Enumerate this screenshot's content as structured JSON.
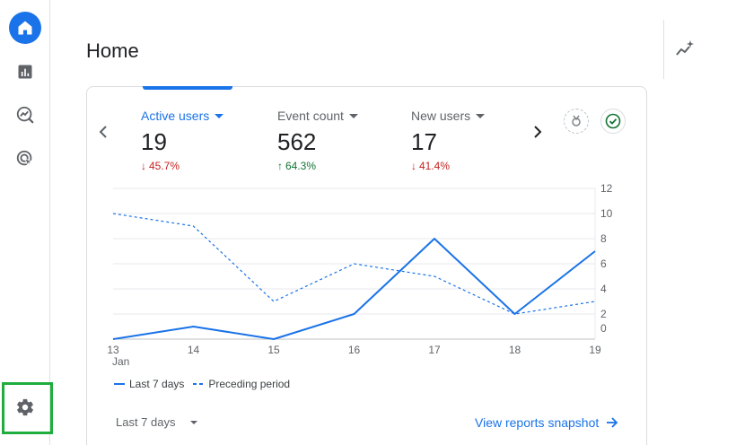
{
  "page": {
    "title": "Home"
  },
  "nav": {
    "items": [
      {
        "name": "Home",
        "icon": "home-icon"
      },
      {
        "name": "Reports",
        "icon": "bar-chart-icon"
      },
      {
        "name": "Explore",
        "icon": "explore-icon"
      },
      {
        "name": "Advertising",
        "icon": "advertising-icon"
      }
    ],
    "admin_icon": "gear-icon"
  },
  "metrics": [
    {
      "label": "Active users",
      "value": "19",
      "delta": "45.7%",
      "direction": "down",
      "active": true
    },
    {
      "label": "Event count",
      "value": "562",
      "delta": "64.3%",
      "direction": "up",
      "active": false
    },
    {
      "label": "New users",
      "value": "17",
      "delta": "41.4%",
      "direction": "down",
      "active": false
    }
  ],
  "chart_data": {
    "type": "line",
    "x": [
      "13",
      "14",
      "15",
      "16",
      "17",
      "18",
      "19"
    ],
    "x_sublabel": "Jan",
    "ylim": [
      0,
      12
    ],
    "yticks": [
      0,
      2,
      4,
      6,
      8,
      10,
      12
    ],
    "series": [
      {
        "name": "Last 7 days",
        "style": "solid",
        "values": [
          0,
          1,
          0,
          2,
          8,
          2,
          7
        ]
      },
      {
        "name": "Preceding period",
        "style": "dashed",
        "values": [
          10,
          9,
          3,
          6,
          5,
          2,
          3
        ]
      }
    ],
    "series_color": "#1a73e8",
    "grid": true
  },
  "legend": {
    "last": "Last 7 days",
    "preceding": "Preceding period"
  },
  "footer": {
    "range": "Last 7 days",
    "link": "View reports snapshot"
  },
  "colors": {
    "accent": "#1a73e8",
    "down": "#c5221f",
    "up": "#137333",
    "highlight": "#1fad3e"
  }
}
